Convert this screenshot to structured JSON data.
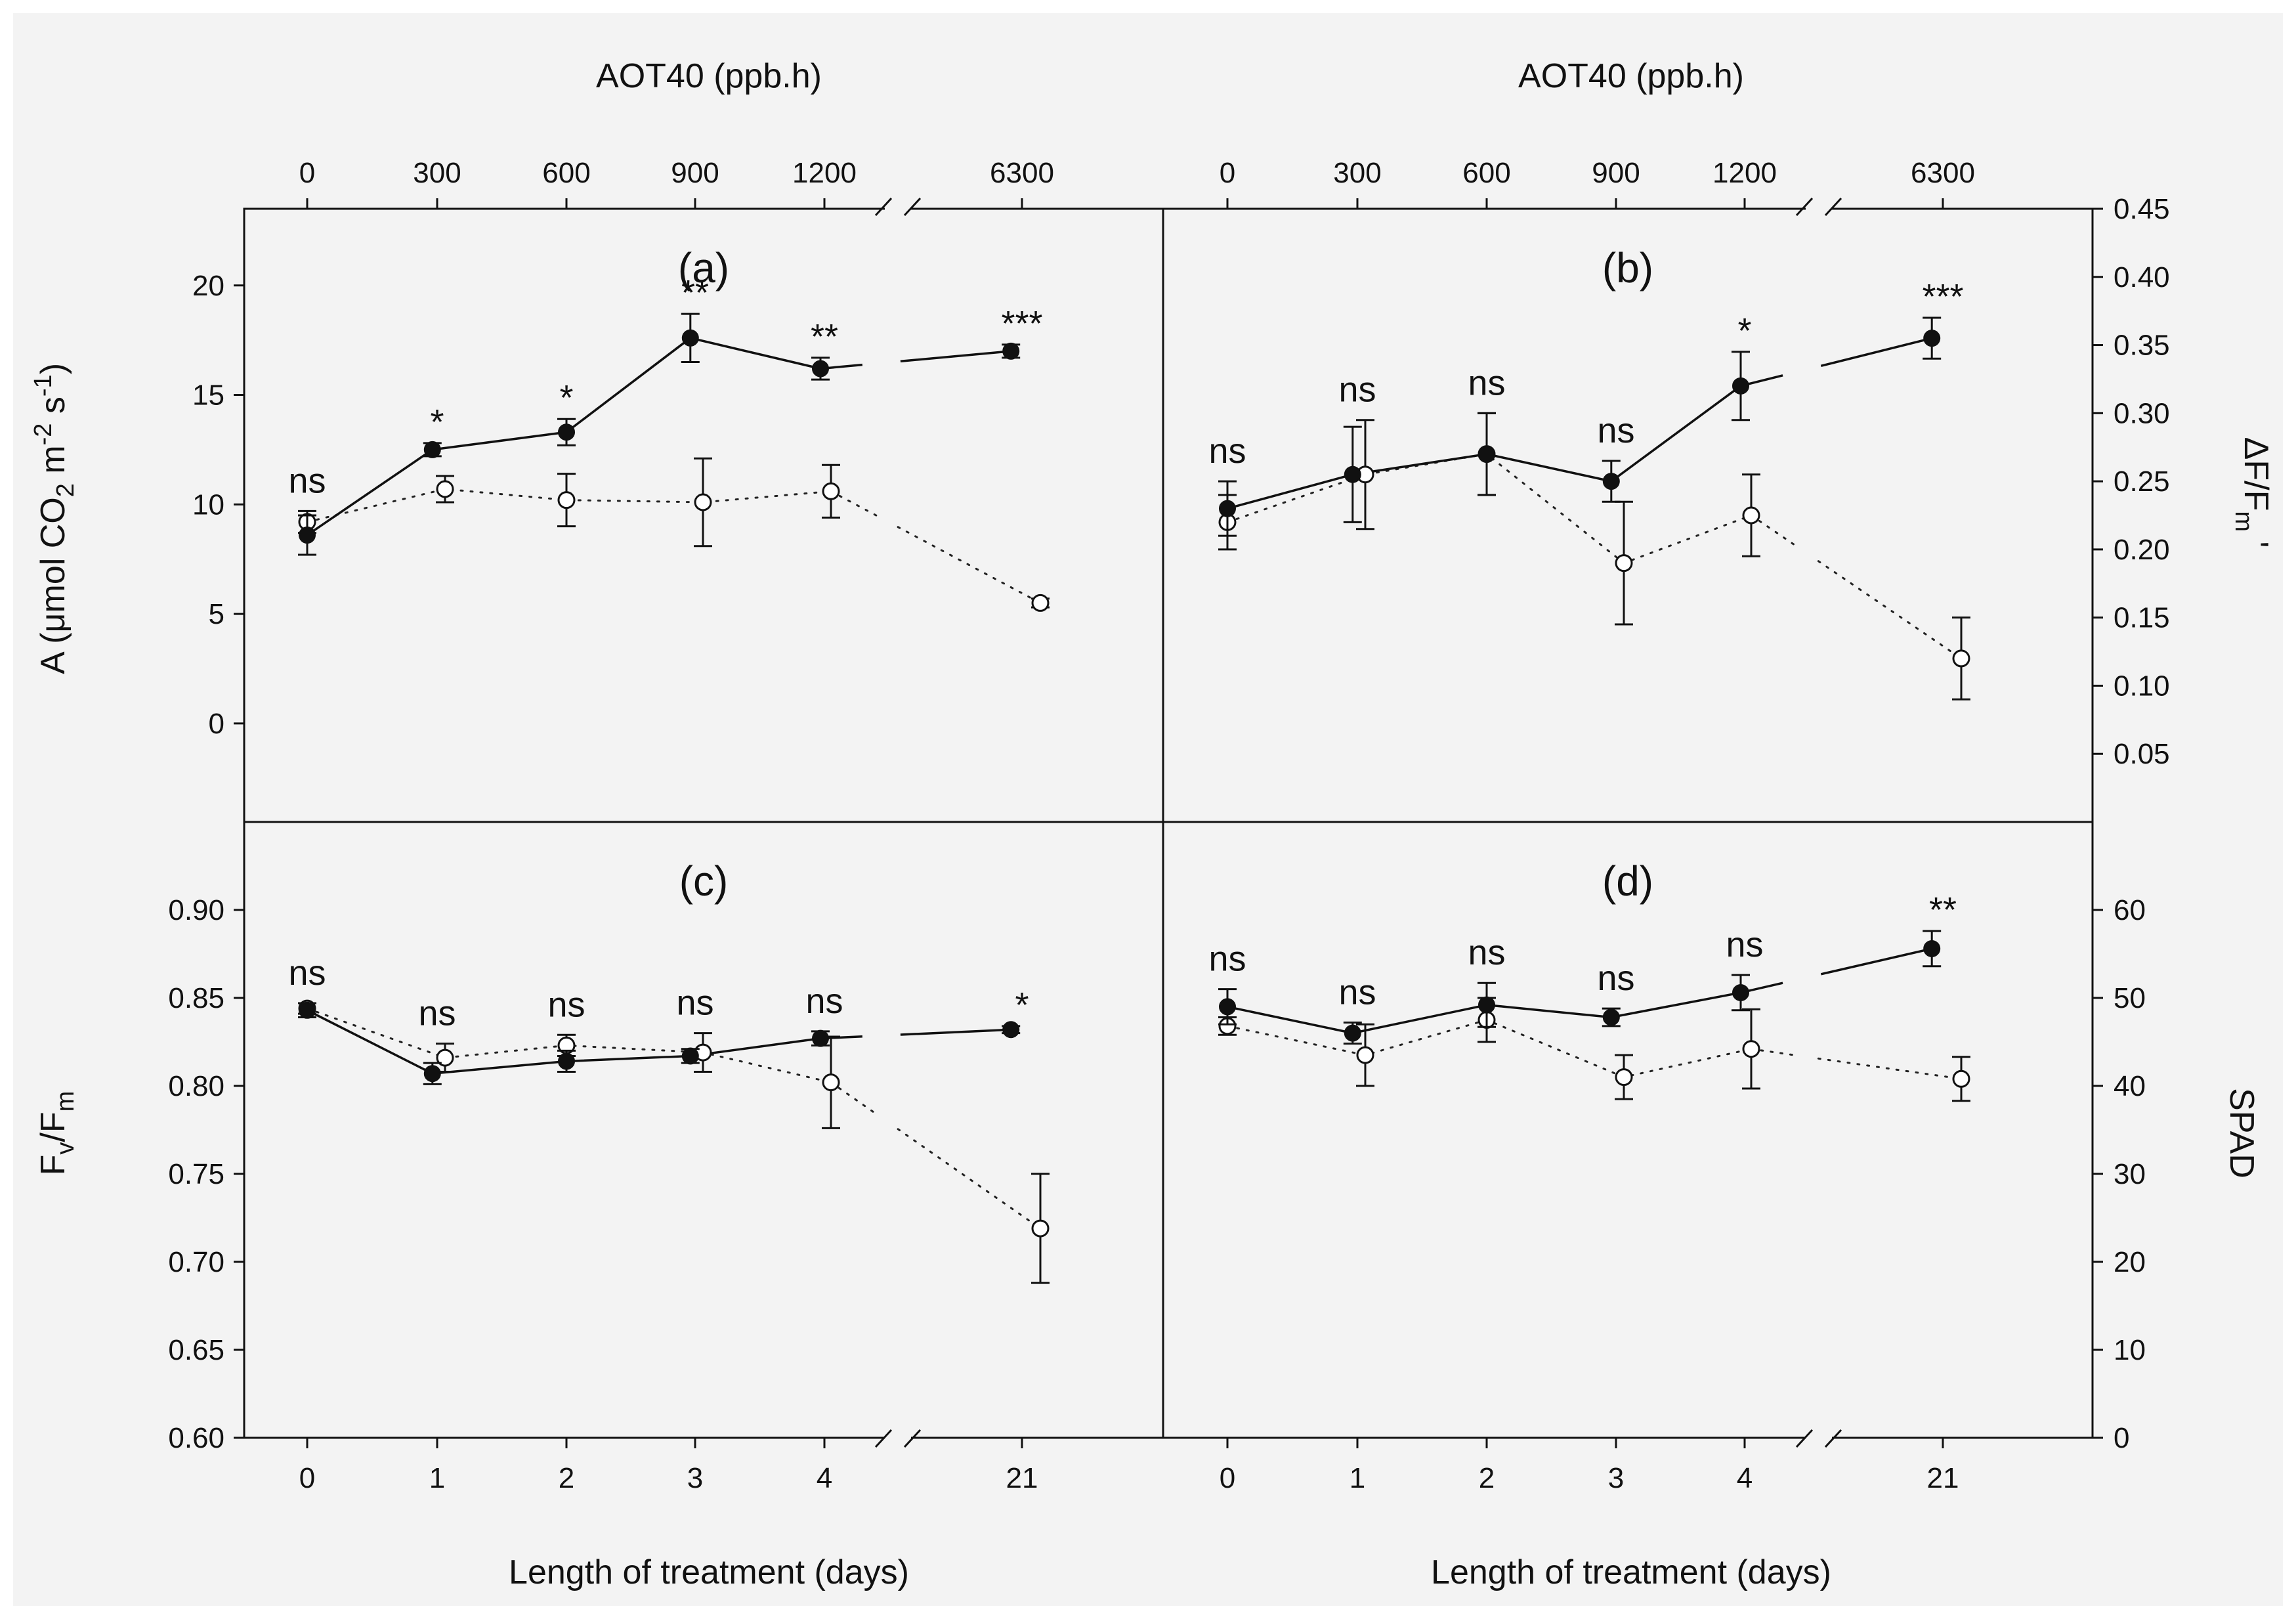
{
  "chart_data": [
    {
      "type": "line",
      "panel": "(a)",
      "title": "(a)",
      "xlabel": "",
      "ylabel": "A (μmol CO2 m-2 s-1)",
      "ylabel_parts": {
        "main": "A (μmol CO",
        "sub": "2",
        "mid": " m",
        "sup1": "-2",
        "mid2": " s",
        "sup2": "-1",
        "end": ")"
      },
      "x_categories": [
        "0",
        "1",
        "2",
        "3",
        "4",
        "21"
      ],
      "top_axis_label": "AOT40 (ppb.h)",
      "top_ticks": [
        "0",
        "300",
        "600",
        "900",
        "1200",
        "6300"
      ],
      "ylim": [
        -4.5,
        23.5
      ],
      "yticks": [
        "0",
        "5",
        "10",
        "15",
        "20"
      ],
      "series": [
        {
          "name": "filled",
          "values": [
            8.6,
            12.5,
            13.3,
            17.6,
            16.2,
            17.0
          ],
          "errors": [
            0.9,
            0.3,
            0.6,
            1.1,
            0.5,
            0.3
          ]
        },
        {
          "name": "open",
          "values": [
            9.2,
            10.7,
            10.2,
            10.1,
            10.6,
            5.5
          ],
          "errors": [
            0.5,
            0.6,
            1.2,
            2.0,
            1.2,
            0.2
          ]
        }
      ],
      "annotations": [
        "ns",
        "*",
        "*",
        "**",
        "**",
        "***"
      ]
    },
    {
      "type": "line",
      "panel": "(b)",
      "title": "(b)",
      "ylabel": "ΔF/Fm'",
      "ylabel_parts": {
        "main": "ΔF/F",
        "sub": "m",
        "end": " '"
      },
      "x_categories": [
        "0",
        "1",
        "2",
        "3",
        "4",
        "21"
      ],
      "top_axis_label": "AOT40 (ppb.h)",
      "top_ticks": [
        "0",
        "300",
        "600",
        "900",
        "1200",
        "6300"
      ],
      "ylim": [
        0.0,
        0.45
      ],
      "yticks": [
        "0.05",
        "0.10",
        "0.15",
        "0.20",
        "0.25",
        "0.30",
        "0.35",
        "0.40",
        "0.45"
      ],
      "series": [
        {
          "name": "filled",
          "values": [
            0.23,
            0.255,
            0.27,
            0.25,
            0.32,
            0.355
          ],
          "errors": [
            0.02,
            0.035,
            0.03,
            0.015,
            0.025,
            0.015
          ]
        },
        {
          "name": "open",
          "values": [
            0.22,
            0.255,
            0.27,
            0.19,
            0.225,
            0.12
          ],
          "errors": [
            0.02,
            0.04,
            0.03,
            0.045,
            0.03,
            0.03
          ]
        }
      ],
      "annotations": [
        "ns",
        "ns",
        "ns",
        "ns",
        "*",
        "***"
      ]
    },
    {
      "type": "line",
      "panel": "(c)",
      "title": "(c)",
      "xlabel": "Length of treatment (days)",
      "ylabel": "Fv/Fm",
      "ylabel_parts": {
        "main": "F",
        "sub": "v",
        "mid": "/F",
        "sub2": "m"
      },
      "x_categories": [
        "0",
        "1",
        "2",
        "3",
        "4",
        "21"
      ],
      "ylim": [
        0.6,
        0.95
      ],
      "yticks": [
        "0.60",
        "0.65",
        "0.70",
        "0.75",
        "0.80",
        "0.85",
        "0.90"
      ],
      "series": [
        {
          "name": "filled",
          "values": [
            0.843,
            0.807,
            0.814,
            0.817,
            0.827,
            0.832
          ],
          "errors": [
            0.004,
            0.006,
            0.006,
            0.004,
            0.004,
            0.002
          ]
        },
        {
          "name": "open",
          "values": [
            0.844,
            0.816,
            0.823,
            0.819,
            0.802,
            0.719
          ],
          "errors": [
            0.003,
            0.008,
            0.006,
            0.011,
            0.026,
            0.031
          ]
        }
      ],
      "annotations": [
        "ns",
        "ns",
        "ns",
        "ns",
        "ns",
        "*"
      ]
    },
    {
      "type": "line",
      "panel": "(d)",
      "title": "(d)",
      "xlabel": "Length of treatment (days)",
      "ylabel": "SPAD",
      "x_categories": [
        "0",
        "1",
        "2",
        "3",
        "4",
        "21"
      ],
      "ylim": [
        0,
        70
      ],
      "yticks": [
        "0",
        "10",
        "20",
        "30",
        "40",
        "50",
        "60"
      ],
      "series": [
        {
          "name": "filled",
          "values": [
            49.0,
            46.0,
            49.2,
            47.8,
            50.6,
            55.6
          ],
          "errors": [
            2.0,
            1.2,
            2.5,
            1.0,
            2.0,
            2.0
          ]
        },
        {
          "name": "open",
          "values": [
            46.8,
            43.5,
            47.5,
            41.0,
            44.2,
            40.8
          ],
          "errors": [
            1.0,
            3.5,
            2.5,
            2.5,
            4.5,
            2.5
          ]
        }
      ],
      "annotations": [
        "ns",
        "ns",
        "ns",
        "ns",
        "ns",
        "**"
      ]
    }
  ]
}
